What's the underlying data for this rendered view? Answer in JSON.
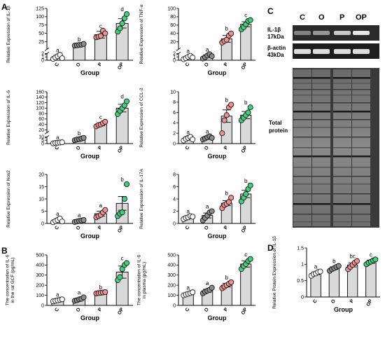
{
  "panel_letters": {
    "a": "A",
    "b": "B",
    "c": "C",
    "d": "D"
  },
  "group_label": "Group",
  "colors": {
    "C": "#ffffff",
    "O": "#8c8c8c",
    "P": "#ec9090",
    "OP": "#3ed17e",
    "bar": "#d9d9d9",
    "bar_stroke": "#000000"
  },
  "chart_data": [
    {
      "id": "il1b",
      "type": "bar",
      "ylabel": "Relative Expression of IL-1β",
      "categories": [
        "C",
        "O",
        "P",
        "OP"
      ],
      "values": [
        1.0,
        15,
        46,
        80
      ],
      "sem": [
        0.3,
        2,
        10,
        14
      ],
      "points": [
        [
          0.4,
          0.8,
          1.2,
          1.6,
          0.6
        ],
        [
          13,
          14,
          15,
          16,
          18
        ],
        [
          38,
          40,
          42,
          58,
          50
        ],
        [
          55,
          65,
          80,
          95,
          108
        ]
      ],
      "letters": [
        "a",
        "b",
        "c",
        "d"
      ],
      "ylim": [
        0,
        125
      ],
      "yticks": [
        0,
        1,
        2,
        25,
        50,
        75,
        100,
        125
      ],
      "broken_axis": {
        "lower": [
          0,
          2
        ],
        "upper": [
          2,
          125
        ]
      }
    },
    {
      "id": "tnfa",
      "type": "bar",
      "ylabel": "Relative Expression of TNF-α",
      "categories": [
        "C",
        "O",
        "P",
        "OP"
      ],
      "values": [
        0.8,
        1.2,
        27,
        62
      ],
      "sem": [
        0.3,
        0.4,
        8,
        6
      ],
      "points": [
        [
          0.3,
          0.6,
          1.0,
          1.3,
          0.8
        ],
        [
          0.5,
          0.9,
          1.4,
          1.8,
          1.2
        ],
        [
          18,
          22,
          25,
          35,
          40
        ],
        [
          50,
          55,
          62,
          70,
          72
        ]
      ],
      "letters": [
        "a",
        "a",
        "b",
        "c"
      ],
      "ylim": [
        0,
        100
      ],
      "yticks": [
        0,
        1,
        2,
        20,
        40,
        60,
        80,
        100
      ],
      "broken_axis": {
        "lower": [
          0,
          2
        ],
        "upper": [
          2,
          100
        ]
      }
    },
    {
      "id": "il6",
      "type": "bar",
      "ylabel": "Relative Expression of IL-6",
      "categories": [
        "C",
        "O",
        "P",
        "OP"
      ],
      "values": [
        1.2,
        6.5,
        40,
        100
      ],
      "sem": [
        0.3,
        1.2,
        5,
        14
      ],
      "points": [
        [
          0.4,
          0.9,
          1.2,
          1.6,
          1.9
        ],
        [
          5.0,
          6.0,
          6.5,
          7.5,
          8.5
        ],
        [
          33,
          38,
          40,
          45,
          50
        ],
        [
          78,
          90,
          100,
          110,
          125
        ]
      ],
      "letters": [
        "a",
        "b",
        "c",
        "d"
      ],
      "ylim": [
        0,
        160
      ],
      "yticks": [
        0,
        5,
        10,
        20,
        40,
        60,
        80,
        100,
        120,
        140,
        160
      ],
      "broken_axis": {
        "lower": [
          0,
          10
        ],
        "upper": [
          10,
          160
        ]
      }
    },
    {
      "id": "ccl2",
      "type": "bar",
      "ylabel": "Relative Expression of CCL-2",
      "categories": [
        "C",
        "O",
        "P",
        "OP"
      ],
      "values": [
        1.0,
        1.1,
        5.3,
        5.5
      ],
      "sem": [
        0.3,
        0.2,
        1.2,
        0.7
      ],
      "points": [
        [
          0.6,
          0.9,
          1.1,
          1.3,
          0.8
        ],
        [
          0.8,
          1.0,
          1.2,
          1.4,
          1.1
        ],
        [
          2.0,
          4.5,
          5.5,
          7.0,
          7.5
        ],
        [
          4.5,
          5.0,
          5.5,
          6.0,
          7.0
        ]
      ],
      "letters": [
        "a",
        "a",
        "b",
        "b"
      ],
      "ylim": [
        0,
        10
      ],
      "yticks": [
        0,
        2,
        4,
        6,
        8,
        10
      ]
    },
    {
      "id": "nos2",
      "type": "bar",
      "ylabel": "Relative Expression of Nos2",
      "categories": [
        "C",
        "O",
        "P",
        "OP"
      ],
      "values": [
        1.2,
        1.0,
        4.0,
        8.2
      ],
      "sem": [
        0.4,
        0.2,
        1.0,
        2.8
      ],
      "points": [
        [
          0.5,
          1.0,
          1.4,
          2.0,
          0.8
        ],
        [
          0.6,
          0.8,
          1.0,
          1.2,
          1.4
        ],
        [
          2.5,
          3.0,
          3.5,
          4.5,
          5.5
        ],
        [
          3.0,
          4.0,
          4.5,
          10.0,
          16.0
        ]
      ],
      "letters": [
        "a",
        "a",
        "a",
        "b"
      ],
      "ylim": [
        0,
        20
      ],
      "yticks": [
        0,
        5,
        10,
        15,
        20
      ]
    },
    {
      "id": "il17a",
      "type": "bar",
      "ylabel": "Relative Expression of IL-17A",
      "categories": [
        "C",
        "O",
        "P",
        "OP"
      ],
      "values": [
        1.0,
        1.3,
        3.3,
        4.8
      ],
      "sem": [
        0.2,
        0.4,
        0.4,
        0.6
      ],
      "points": [
        [
          0.7,
          0.9,
          1.0,
          1.2,
          1.1
        ],
        [
          0.5,
          0.9,
          1.3,
          1.8,
          2.0
        ],
        [
          2.5,
          3.0,
          3.2,
          3.5,
          4.2
        ],
        [
          3.6,
          4.2,
          4.8,
          5.6,
          6.2
        ]
      ],
      "letters": [
        "a",
        "a",
        "b",
        "b"
      ],
      "ylim": [
        0,
        8
      ],
      "yticks": [
        0,
        2,
        4,
        6,
        8
      ]
    },
    {
      "id": "il6gcf",
      "type": "bar",
      "ylabel": "The concentration of IL-6 in the rat GCF (pg/mL)",
      "categories": [
        "C",
        "O",
        "P",
        "OP"
      ],
      "values": [
        50,
        60,
        125,
        330
      ],
      "sem": [
        8,
        12,
        5,
        60
      ],
      "points": [
        [
          40,
          45,
          50,
          55,
          60
        ],
        [
          45,
          50,
          60,
          65,
          80
        ],
        [
          118,
          122,
          125,
          128,
          132
        ],
        [
          250,
          280,
          360,
          400,
          420
        ]
      ],
      "letters": [
        "a",
        "a",
        "b",
        "c"
      ],
      "ylim": [
        0,
        500
      ],
      "yticks": [
        0,
        100,
        200,
        300,
        400,
        500
      ]
    },
    {
      "id": "il6plasma",
      "type": "bar",
      "ylabel": "The concentration of IL-6 in plasma (pg/mL)",
      "categories": [
        "C",
        "O",
        "P",
        "OP"
      ],
      "values": [
        115,
        145,
        200,
        410
      ],
      "sem": [
        10,
        15,
        18,
        30
      ],
      "points": [
        [
          100,
          108,
          115,
          122,
          130
        ],
        [
          120,
          135,
          145,
          155,
          175
        ],
        [
          170,
          185,
          200,
          215,
          230
        ],
        [
          360,
          390,
          410,
          440,
          460
        ]
      ],
      "letters": [
        "a",
        "a",
        "b",
        "c"
      ],
      "ylim": [
        0,
        500
      ],
      "yticks": [
        0,
        100,
        200,
        300,
        400,
        500
      ]
    },
    {
      "id": "wbquant",
      "type": "bar",
      "ylabel": "Relative Protein Expression of IL-1β",
      "categories": [
        "C",
        "O",
        "P",
        "OP"
      ],
      "values": [
        0.72,
        0.88,
        0.98,
        1.08
      ],
      "sem": [
        0.04,
        0.04,
        0.06,
        0.05
      ],
      "points": [
        [
          0.65,
          0.7,
          0.72,
          0.76,
          0.78
        ],
        [
          0.8,
          0.85,
          0.88,
          0.92,
          0.95
        ],
        [
          0.85,
          0.92,
          0.98,
          1.05,
          1.1
        ],
        [
          1.0,
          1.05,
          1.08,
          1.12,
          1.15
        ]
      ],
      "letters": [
        "a",
        "b",
        "bc",
        "c"
      ],
      "ylim": [
        0,
        1.5
      ],
      "yticks": [
        0.0,
        0.5,
        1.0,
        1.5
      ]
    }
  ],
  "western_blot": {
    "lane_labels": [
      "C",
      "O",
      "P",
      "OP"
    ],
    "rows": [
      {
        "name": "IL-1β",
        "size": "17kDa"
      },
      {
        "name": "β-actin",
        "size": "43kDa"
      }
    ],
    "total_protein_label": [
      "Total",
      "protein"
    ],
    "il1b_intensity": [
      0.45,
      0.55,
      0.8,
      0.95
    ],
    "actin_intensity": [
      0.9,
      0.9,
      0.9,
      0.9
    ]
  }
}
